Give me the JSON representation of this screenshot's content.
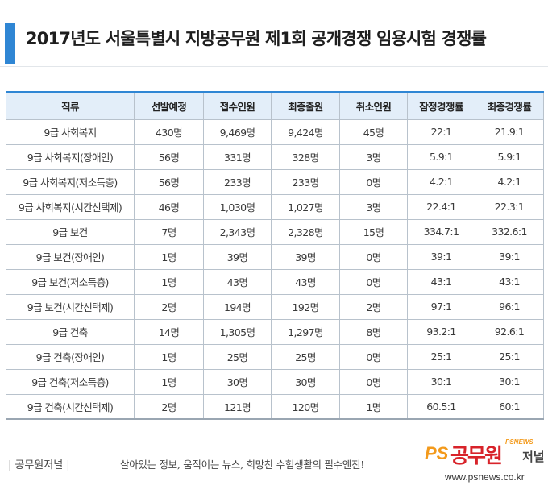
{
  "title": "2017년도 서울특별시 지방공무원 제1회 공개경쟁 임용시험 경쟁률",
  "colors": {
    "accent": "#2f86d4",
    "header_bg": "#e3eef9",
    "logo_red": "#d8232a",
    "logo_orange": "#f39a1c"
  },
  "table": {
    "headers": [
      "직류",
      "선발예정",
      "접수인원",
      "최종출원",
      "취소인원",
      "잠정경쟁률",
      "최종경쟁률"
    ],
    "rows": [
      [
        "9급 사회복지",
        "430명",
        "9,469명",
        "9,424명",
        "45명",
        "22:1",
        "21.9:1"
      ],
      [
        "9급 사회복지(장애인)",
        "56명",
        "331명",
        "328명",
        "3명",
        "5.9:1",
        "5.9:1"
      ],
      [
        "9급 사회복지(저소득층)",
        "56명",
        "233명",
        "233명",
        "0명",
        "4.2:1",
        "4.2:1"
      ],
      [
        "9급 사회복지(시간선택제)",
        "46명",
        "1,030명",
        "1,027명",
        "3명",
        "22.4:1",
        "22.3:1"
      ],
      [
        "9급 보건",
        "7명",
        "2,343명",
        "2,328명",
        "15명",
        "334.7:1",
        "332.6:1"
      ],
      [
        "9급 보건(장애인)",
        "1명",
        "39명",
        "39명",
        "0명",
        "39:1",
        "39:1"
      ],
      [
        "9급 보건(저소득층)",
        "1명",
        "43명",
        "43명",
        "0명",
        "43:1",
        "43:1"
      ],
      [
        "9급 보건(시간선택제)",
        "2명",
        "194명",
        "192명",
        "2명",
        "97:1",
        "96:1"
      ],
      [
        "9급 건축",
        "14명",
        "1,305명",
        "1,297명",
        "8명",
        "93.2:1",
        "92.6:1"
      ],
      [
        "9급 건축(장애인)",
        "1명",
        "25명",
        "25명",
        "0명",
        "25:1",
        "25:1"
      ],
      [
        "9급 건축(저소득층)",
        "1명",
        "30명",
        "30명",
        "0명",
        "30:1",
        "30:1"
      ],
      [
        "9급 건축(시간선택제)",
        "2명",
        "121명",
        "120명",
        "1명",
        "60.5:1",
        "60:1"
      ]
    ]
  },
  "footer": {
    "brand": "공무원저널",
    "slogan": "살아있는 정보, 움직이는 뉴스, 희망찬 수험생활의 필수엔진!",
    "logo_ps": "PS",
    "logo_main": "공무원",
    "logo_small": "저널",
    "logo_tag": "PSNEWS",
    "url": "www.psnews.co.kr"
  }
}
